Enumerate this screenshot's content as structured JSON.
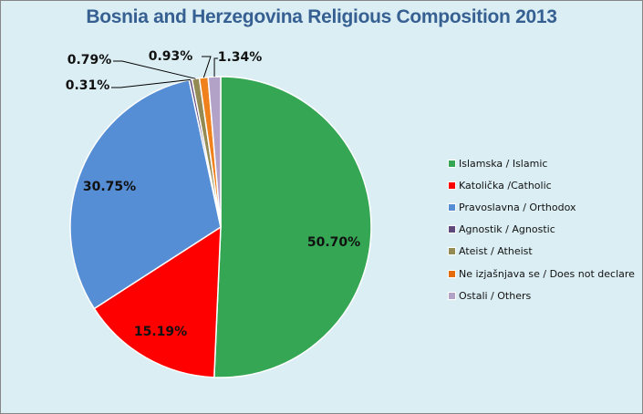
{
  "chart_data": {
    "type": "pie",
    "title": "Bosnia and Herzegovina Religious Composition 2013",
    "categories": [
      "Islamska / Islamic",
      "Katolička /Catholic",
      "Pravoslavna / Orthodox",
      "Agnostik / Agnostic",
      "Ateist / Atheist",
      "Ne izjašnjava  se / Does not declare",
      "Ostali / Others"
    ],
    "values": [
      50.7,
      15.19,
      30.75,
      0.31,
      0.79,
      0.93,
      1.34
    ],
    "labels": [
      "50.70%",
      "15.19%",
      "30.75%",
      "0.31%",
      "0.79%",
      "0.93%",
      "1.34%"
    ],
    "colors": [
      "#35a654",
      "#ff0000",
      "#558ed5",
      "#604a7b",
      "#948a54",
      "#f0821e",
      "#b3a2c7"
    ],
    "legend_position": "right",
    "start_angle": "12 o'clock, clockwise"
  },
  "chart": {
    "title": "Bosnia and Herzegovina Religious Composition 2013"
  },
  "legend": {
    "items": [
      {
        "label": "Islamska / Islamic",
        "color": "#35a654"
      },
      {
        "label": "Katolička /Catholic",
        "color": "#ff0000"
      },
      {
        "label": "Pravoslavna / Orthodox",
        "color": "#558ed5"
      },
      {
        "label": "Agnostik / Agnostic",
        "color": "#604a7b"
      },
      {
        "label": "Ateist / Atheist",
        "color": "#948a54"
      },
      {
        "label": "Ne izjašnjava  se / Does not declare",
        "color": "#e36c09"
      },
      {
        "label": "Ostali / Others",
        "color": "#b3a2c7"
      }
    ]
  }
}
